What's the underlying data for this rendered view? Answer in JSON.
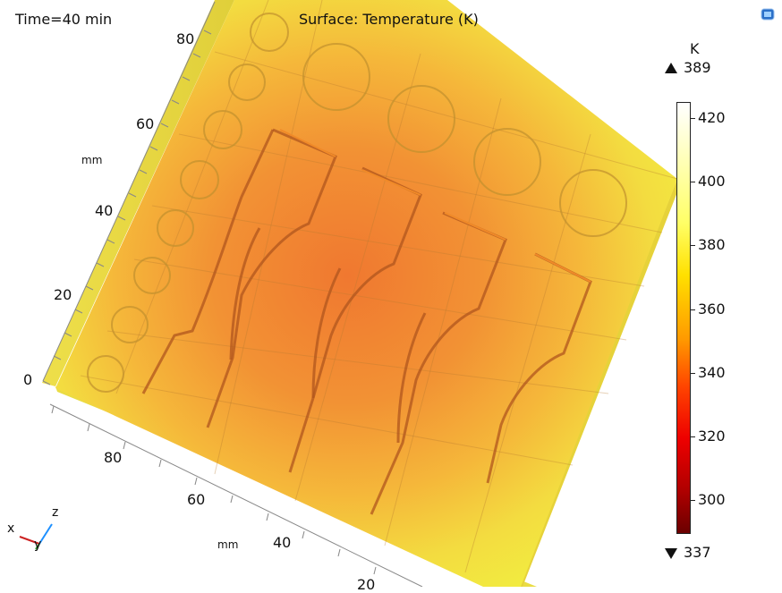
{
  "header": {
    "time_label": "Time=40 min",
    "title": "Surface: Temperature (K)"
  },
  "axes": {
    "left_ticks": [
      "80",
      "60",
      "40",
      "20",
      "0"
    ],
    "left_unit": "mm",
    "bottom_ticks": [
      "80",
      "60",
      "40",
      "20"
    ],
    "bottom_unit": "mm"
  },
  "triad": {
    "x": "x",
    "y": "y",
    "z": "z"
  },
  "colorbar": {
    "unit": "K",
    "max_label": "389",
    "min_label": "337",
    "ticks": [
      "420",
      "400",
      "380",
      "360",
      "340",
      "320",
      "300"
    ],
    "range": [
      290,
      425
    ]
  },
  "colors": {
    "hot": "#f07a30",
    "warm": "#f6b83a",
    "cool": "#f2ee3e",
    "edge": "#e2d640"
  },
  "icons": {
    "logo": "comsol-logo-icon",
    "max_marker": "triangle-up-icon",
    "min_marker": "triangle-down-icon"
  }
}
